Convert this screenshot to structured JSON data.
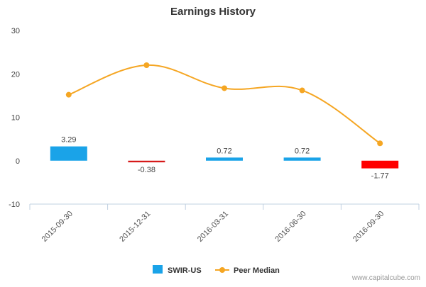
{
  "chart_data": {
    "type": "bar",
    "title": "Earnings History",
    "categories": [
      "2015-09-30",
      "2015-12-31",
      "2016-03-31",
      "2016-06-30",
      "2016-09-30"
    ],
    "series": [
      {
        "name": "SWIR-US",
        "kind": "bar",
        "values": [
          3.29,
          -0.38,
          0.72,
          0.72,
          -1.77
        ],
        "labels": [
          "3.29",
          "-0.38",
          "0.72",
          "0.72",
          "-1.77"
        ],
        "colors": [
          "#1aa3e8",
          "#d61a1a",
          "#1aa3e8",
          "#1aa3e8",
          "#ff0000"
        ]
      },
      {
        "name": "Peer Median",
        "kind": "line",
        "values": [
          15.2,
          22.0,
          16.7,
          16.2,
          4.0
        ],
        "color": "#f5a623"
      }
    ],
    "ylim": [
      -10,
      30
    ],
    "yticks": [
      "-10",
      "0",
      "10",
      "20",
      "30"
    ],
    "grid": false,
    "legend": "bottom-center"
  },
  "credit": "www.capitalcube.com"
}
